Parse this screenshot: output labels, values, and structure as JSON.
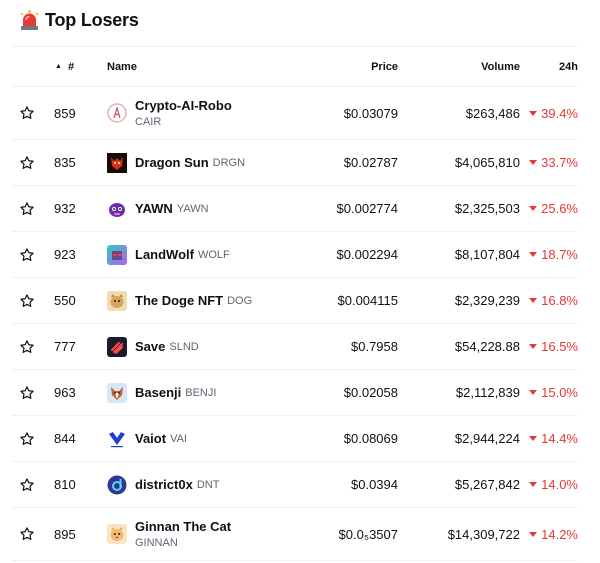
{
  "header": {
    "title": "Top Losers",
    "icon": "siren-icon"
  },
  "columns": {
    "rank": "#",
    "name": "Name",
    "price": "Price",
    "volume": "Volume",
    "change": "24h"
  },
  "rows": [
    {
      "rank": "859",
      "name": "Crypto-AI-Robo",
      "symbol": "CAIR",
      "price": "$0.03079",
      "volume": "$263,486",
      "change": "39.4%",
      "stacked": true
    },
    {
      "rank": "835",
      "name": "Dragon Sun",
      "symbol": "DRGN",
      "price": "$0.02787",
      "volume": "$4,065,810",
      "change": "33.7%"
    },
    {
      "rank": "932",
      "name": "YAWN",
      "symbol": "YAWN",
      "price": "$0.002774",
      "volume": "$2,325,503",
      "change": "25.6%"
    },
    {
      "rank": "923",
      "name": "LandWolf",
      "symbol": "WOLF",
      "price": "$0.002294",
      "volume": "$8,107,804",
      "change": "18.7%"
    },
    {
      "rank": "550",
      "name": "The Doge NFT",
      "symbol": "DOG",
      "price": "$0.004115",
      "volume": "$2,329,239",
      "change": "16.8%"
    },
    {
      "rank": "777",
      "name": "Save",
      "symbol": "SLND",
      "price": "$0.7958",
      "volume": "$54,228.88",
      "change": "16.5%"
    },
    {
      "rank": "963",
      "name": "Basenji",
      "symbol": "BENJI",
      "price": "$0.02058",
      "volume": "$2,112,839",
      "change": "15.0%"
    },
    {
      "rank": "844",
      "name": "Vaiot",
      "symbol": "VAI",
      "price": "$0.08069",
      "volume": "$2,944,224",
      "change": "14.4%"
    },
    {
      "rank": "810",
      "name": "district0x",
      "symbol": "DNT",
      "price": "$0.0394",
      "volume": "$5,267,842",
      "change": "14.0%"
    },
    {
      "rank": "895",
      "name": "Ginnan The Cat",
      "symbol": "GINNAN",
      "price": "$0.0₅3507",
      "volume": "$14,309,722",
      "change": "14.2%",
      "stacked": true
    }
  ],
  "colors": {
    "negative": "#e53935",
    "text": "#0d1217",
    "muted": "#5b6775"
  }
}
